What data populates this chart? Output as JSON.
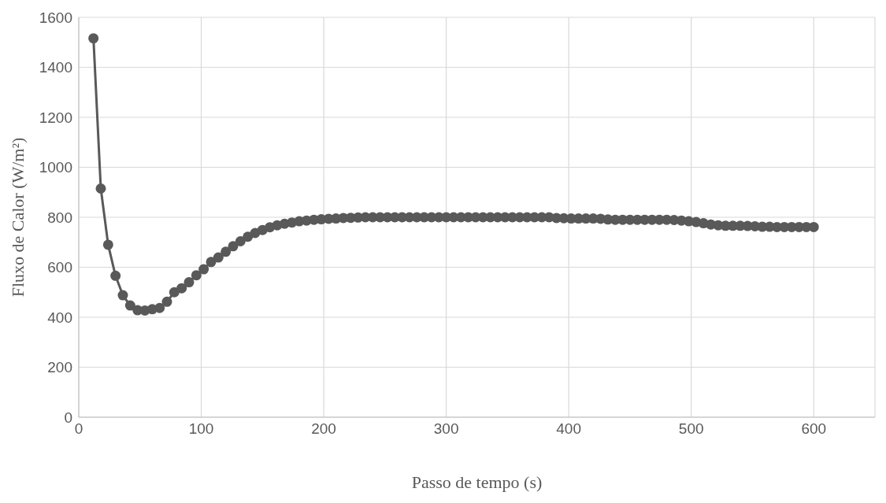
{
  "chart_data": {
    "type": "line",
    "xlabel": "Passo de tempo (s)",
    "ylabel": "Fluxo de Calor (W/m²)",
    "x": [
      12,
      18,
      24,
      30,
      36,
      42,
      48,
      54,
      60,
      66,
      72,
      78,
      84,
      90,
      96,
      102,
      108,
      114,
      120,
      126,
      132,
      138,
      144,
      150,
      156,
      162,
      168,
      174,
      180,
      186,
      192,
      198,
      204,
      210,
      216,
      222,
      228,
      234,
      240,
      246,
      252,
      258,
      264,
      270,
      276,
      282,
      288,
      294,
      300,
      306,
      312,
      318,
      324,
      330,
      336,
      342,
      348,
      354,
      360,
      366,
      372,
      378,
      384,
      390,
      396,
      402,
      408,
      414,
      420,
      426,
      432,
      438,
      444,
      450,
      456,
      462,
      468,
      474,
      480,
      486,
      492,
      498,
      504,
      510,
      516,
      522,
      528,
      534,
      540,
      546,
      552,
      558,
      564,
      570,
      576,
      582,
      588,
      594,
      600
    ],
    "series": [
      {
        "color": "#595959",
        "values": [
          1516,
          915,
          690,
          566,
          488,
          447,
          428,
          427,
          432,
          437,
          462,
          500,
          516,
          540,
          568,
          592,
          621,
          639,
          662,
          684,
          704,
          722,
          737,
          749,
          760,
          768,
          774,
          779,
          784,
          787,
          790,
          792,
          794,
          795,
          797,
          798,
          799,
          800,
          800,
          800,
          800,
          800,
          800,
          800,
          800,
          800,
          800,
          800,
          800,
          800,
          800,
          800,
          800,
          800,
          800,
          800,
          800,
          800,
          800,
          800,
          800,
          800,
          800,
          797,
          796,
          795,
          795,
          795,
          795,
          794,
          791,
          790,
          790,
          790,
          790,
          790,
          790,
          790,
          790,
          789,
          787,
          784,
          781,
          776,
          771,
          768,
          766,
          766,
          766,
          765,
          764,
          762,
          762,
          761,
          761,
          761,
          761,
          761,
          761
        ]
      }
    ],
    "xlim": [
      0,
      650
    ],
    "xticks": [
      0,
      100,
      200,
      300,
      400,
      500,
      600
    ],
    "ylim": [
      0,
      1600
    ],
    "yticks": [
      0,
      200,
      400,
      600,
      800,
      1000,
      1200,
      1400,
      1600
    ],
    "grid": true,
    "marker": "circle",
    "line_style": "solid"
  }
}
